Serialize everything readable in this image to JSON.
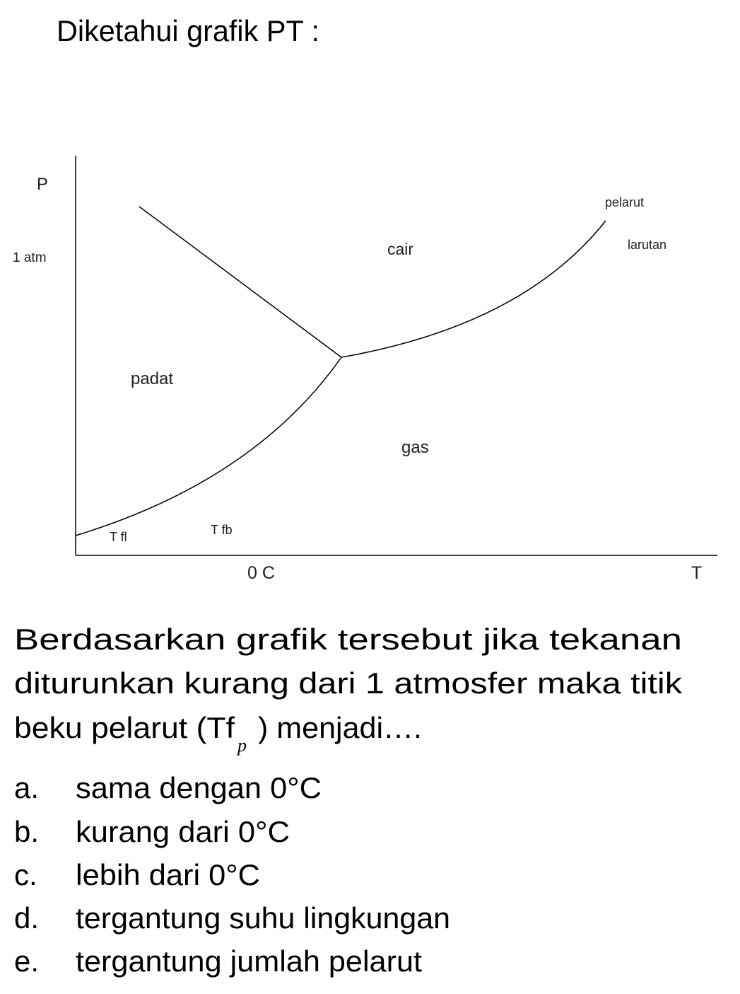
{
  "header": {
    "title": "Diketahui grafik PT :"
  },
  "diagram": {
    "labels": {
      "p_axis": "P",
      "one_atm": "1 atm",
      "cair": "cair",
      "pelarut": "pelarut",
      "larutan": "larutan",
      "padat": "padat",
      "gas": "gas",
      "t_fl": "T fl",
      "t_fb": "T fb",
      "zero_c": "0 C",
      "t_axis": "T"
    }
  },
  "question": {
    "lines": [
      "Berdasarkan grafik tersebut jika tekanan",
      "diturunkan kurang dari 1 atmosfer maka titik"
    ],
    "last_line": {
      "before": "beku pelarut (Tf",
      "subscript": "p",
      "after": ") menjadi…."
    }
  },
  "options": [
    {
      "letter": "a.",
      "text": "sama dengan 0°C"
    },
    {
      "letter": "b.",
      "text": "kurang dari 0°C"
    },
    {
      "letter": "c.",
      "text": "lebih dari 0°C"
    },
    {
      "letter": "d.",
      "text": "tergantung suhu lingkungan"
    },
    {
      "letter": "e.",
      "text": "tergantung jumlah pelarut"
    }
  ]
}
